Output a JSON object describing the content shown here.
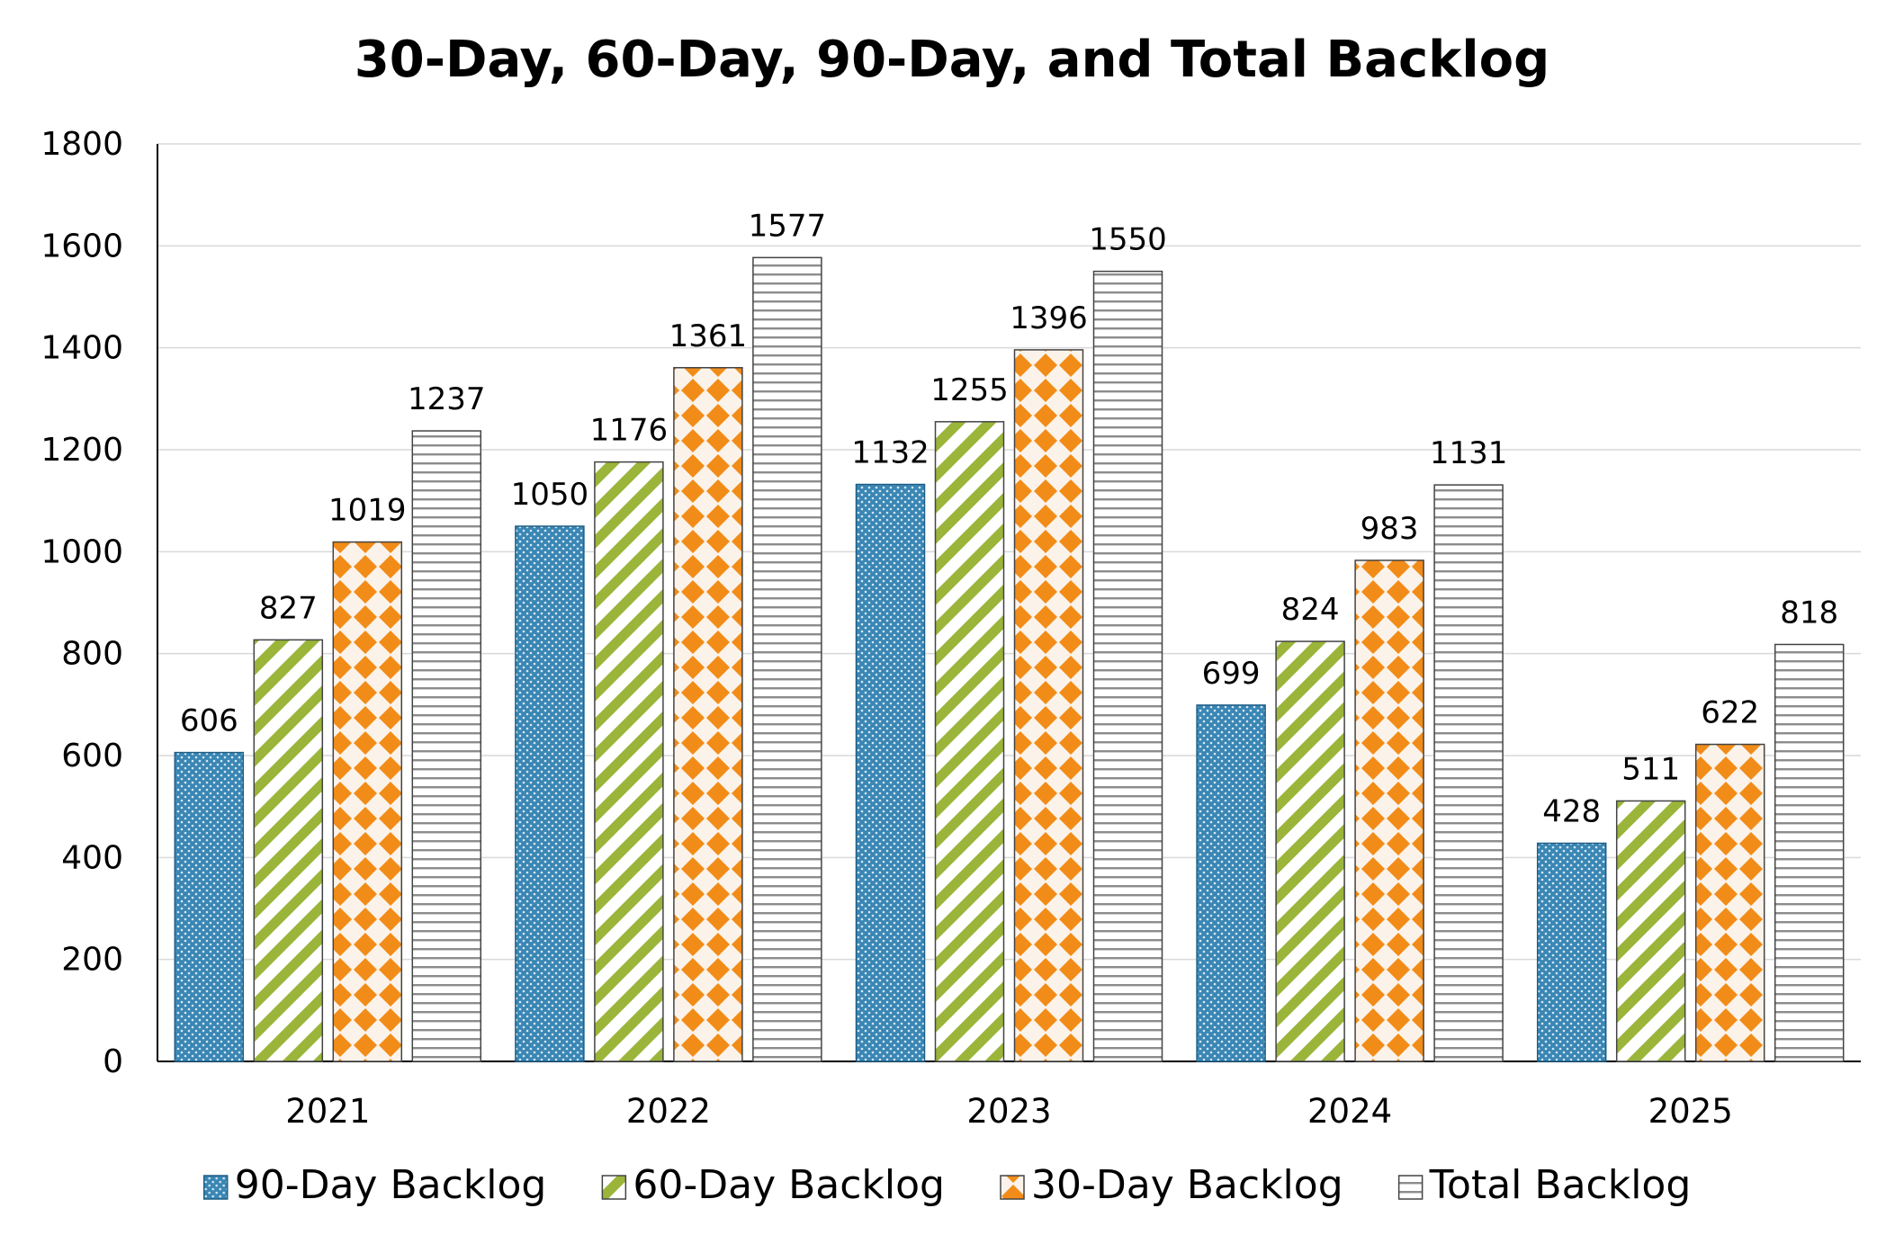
{
  "chart_data": {
    "type": "bar",
    "title": "30-Day, 60-Day, 90-Day, and Total Backlog",
    "xlabel": "",
    "ylabel": "",
    "categories": [
      "2021",
      "2022",
      "2023",
      "2024",
      "2025"
    ],
    "ylim": [
      0,
      1800
    ],
    "yticks": [
      0,
      200,
      400,
      600,
      800,
      1000,
      1200,
      1400,
      1600,
      1800
    ],
    "grid": true,
    "legend_position": "bottom",
    "series": [
      {
        "name": "90-Day Backlog",
        "values": [
          606,
          1050,
          1132,
          699,
          428
        ],
        "color": "#3a86b4",
        "pattern": "dots"
      },
      {
        "name": "60-Day Backlog",
        "values": [
          827,
          1176,
          1255,
          824,
          511
        ],
        "color": "#9ab53a",
        "pattern": "diagonal-stripes"
      },
      {
        "name": "30-Day Backlog",
        "values": [
          1019,
          1361,
          1396,
          983,
          622
        ],
        "color": "#f28c18",
        "pattern": "diamonds"
      },
      {
        "name": "Total Backlog",
        "values": [
          1237,
          1577,
          1550,
          1131,
          818
        ],
        "color": "#8c8c8c",
        "pattern": "horizontal-lines"
      }
    ]
  }
}
